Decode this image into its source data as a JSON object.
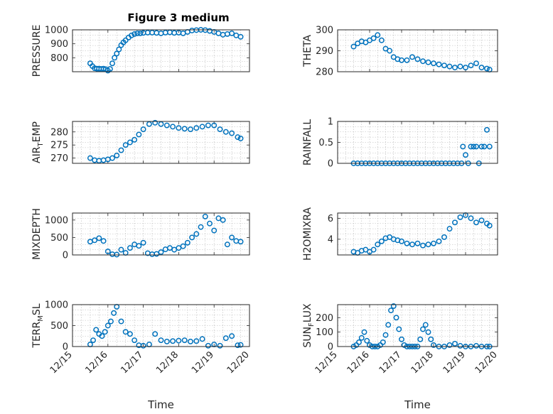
{
  "figure": {
    "title": "Figure 3 medium",
    "marker_color": "#0072BD",
    "axis_color": "#262626"
  },
  "chart_data": [
    {
      "type": "scatter",
      "id": "pressure",
      "ylabel": "PRESSURE",
      "xlabel": "",
      "xlim": [
        "2023-12-15",
        "2023-12-20"
      ],
      "ylim": [
        700,
        1000
      ],
      "yticks": [
        800,
        900,
        1000
      ],
      "grid": true,
      "x": [
        "12/15 12:00",
        "12/15 13:30",
        "12/15 15:00",
        "12/15 16:30",
        "12/15 18:00",
        "12/15 19:30",
        "12/15 21:00",
        "12/15 22:30",
        "12/16 00:00",
        "12/16 01:30",
        "12/16 03:00",
        "12/16 04:30",
        "12/16 06:00",
        "12/16 07:30",
        "12/16 09:00",
        "12/16 10:30",
        "12/16 12:00",
        "12/16 14:00",
        "12/16 16:00",
        "12/16 18:00",
        "12/16 20:00",
        "12/16 22:00",
        "12/17 00:00",
        "12/17 03:00",
        "12/17 06:00",
        "12/17 09:00",
        "12/17 12:00",
        "12/17 15:00",
        "12/17 18:00",
        "12/17 21:00",
        "12/18 00:00",
        "12/18 03:00",
        "12/18 06:00",
        "12/18 09:00",
        "12/18 12:00",
        "12/18 15:00",
        "12/18 18:00",
        "12/18 21:00",
        "12/19 00:00",
        "12/19 03:00",
        "12/19 06:00",
        "12/19 09:00",
        "12/19 12:00",
        "12/19 15:00",
        "12/19 18:00"
      ],
      "y": [
        760,
        740,
        725,
        722,
        722,
        720,
        722,
        718,
        708,
        720,
        760,
        800,
        830,
        860,
        890,
        910,
        925,
        945,
        960,
        970,
        975,
        975,
        978,
        980,
        980,
        978,
        975,
        980,
        982,
        978,
        980,
        975,
        985,
        995,
        998,
        1000,
        998,
        992,
        985,
        975,
        965,
        970,
        975,
        960,
        950
      ]
    },
    {
      "type": "scatter",
      "id": "theta",
      "ylabel": "THETA",
      "xlabel": "",
      "xlim": [
        "2023-12-15",
        "2023-12-20"
      ],
      "ylim": [
        280,
        300
      ],
      "yticks": [
        280,
        290,
        300
      ],
      "grid": true,
      "x": [
        "12/15 12:00",
        "12/15 15:00",
        "12/15 18:00",
        "12/15 21:00",
        "12/16 00:00",
        "12/16 03:00",
        "12/16 06:00",
        "12/16 09:00",
        "12/16 12:00",
        "12/16 15:00",
        "12/16 18:00",
        "12/16 21:00",
        "12/17 00:00",
        "12/17 04:00",
        "12/17 08:00",
        "12/17 12:00",
        "12/17 16:00",
        "12/17 20:00",
        "12/18 00:00",
        "12/18 04:00",
        "12/18 08:00",
        "12/18 12:00",
        "12/18 16:00",
        "12/18 20:00",
        "12/19 00:00",
        "12/19 04:00",
        "12/19 08:00",
        "12/19 12:00",
        "12/19 16:00",
        "12/19 18:00"
      ],
      "y": [
        292,
        293.5,
        294.5,
        294,
        295,
        296,
        297.5,
        295,
        291,
        290,
        287,
        286,
        285.5,
        285.5,
        287,
        286,
        285,
        284.5,
        284,
        283.5,
        283,
        282.5,
        282,
        282.5,
        282,
        283,
        284,
        282,
        281.5,
        281
      ]
    },
    {
      "type": "scatter",
      "id": "air_temp",
      "ylabel": "AIR",
      "ylabel_sub": "T",
      "ylabel_tail": "EMP",
      "xlabel": "",
      "xlim": [
        "2023-12-15",
        "2023-12-20"
      ],
      "ylim": [
        268,
        284
      ],
      "yticks": [
        270,
        275,
        280
      ],
      "grid": true,
      "x": [
        "12/15 12:00",
        "12/15 15:00",
        "12/15 18:00",
        "12/15 21:00",
        "12/16 00:00",
        "12/16 03:00",
        "12/16 06:00",
        "12/16 09:00",
        "12/16 12:00",
        "12/16 15:00",
        "12/16 18:00",
        "12/16 21:00",
        "12/17 00:00",
        "12/17 04:00",
        "12/17 08:00",
        "12/17 12:00",
        "12/17 16:00",
        "12/17 20:00",
        "12/18 00:00",
        "12/18 04:00",
        "12/18 08:00",
        "12/18 12:00",
        "12/18 16:00",
        "12/18 20:00",
        "12/19 00:00",
        "12/19 04:00",
        "12/19 08:00",
        "12/19 12:00",
        "12/19 16:00",
        "12/19 18:00"
      ],
      "y": [
        270,
        269.2,
        269,
        269.2,
        269.5,
        270,
        271,
        273,
        275,
        276,
        277,
        279,
        281,
        283,
        283.5,
        283,
        282.5,
        282,
        281.5,
        281.2,
        281,
        281.5,
        282,
        282.5,
        282.5,
        281,
        280,
        279.5,
        278,
        277.5
      ]
    },
    {
      "type": "scatter",
      "id": "rainfall",
      "ylabel": "RAINFALL",
      "xlabel": "",
      "xlim": [
        "2023-12-15",
        "2023-12-20"
      ],
      "ylim": [
        0,
        1
      ],
      "yticks": [
        0,
        0.5,
        1
      ],
      "grid": true,
      "x": [
        "12/15 12:00",
        "12/15 15:00",
        "12/15 18:00",
        "12/15 21:00",
        "12/16 00:00",
        "12/16 03:00",
        "12/16 06:00",
        "12/16 09:00",
        "12/16 12:00",
        "12/16 15:00",
        "12/16 18:00",
        "12/16 21:00",
        "12/17 00:00",
        "12/17 03:00",
        "12/17 06:00",
        "12/17 09:00",
        "12/17 12:00",
        "12/17 15:00",
        "12/17 18:00",
        "12/17 21:00",
        "12/18 00:00",
        "12/18 03:00",
        "12/18 06:00",
        "12/18 09:00",
        "12/18 12:00",
        "12/18 15:00",
        "12/18 18:00",
        "12/18 21:00",
        "12/18 22:00",
        "12/19 00:00",
        "12/19 02:00",
        "12/19 04:00",
        "12/19 06:00",
        "12/19 08:00",
        "12/19 10:00",
        "12/19 12:00",
        "12/19 14:00",
        "12/19 16:00",
        "12/19 18:00"
      ],
      "y": [
        0,
        0,
        0,
        0,
        0,
        0,
        0,
        0,
        0,
        0,
        0,
        0,
        0,
        0,
        0,
        0,
        0,
        0,
        0,
        0,
        0,
        0,
        0,
        0,
        0,
        0,
        0,
        0,
        0.4,
        0.2,
        0,
        0.4,
        0.4,
        0.4,
        0,
        0.4,
        0.4,
        0.8,
        0.4
      ]
    },
    {
      "type": "scatter",
      "id": "mixdepth",
      "ylabel": "MIXDEPTH",
      "xlabel": "",
      "xlim": [
        "2023-12-15",
        "2023-12-20"
      ],
      "ylim": [
        0,
        1200
      ],
      "yticks": [
        0,
        500,
        1000
      ],
      "grid": true,
      "x": [
        "12/15 12:00",
        "12/15 15:00",
        "12/15 18:00",
        "12/15 21:00",
        "12/16 00:00",
        "12/16 03:00",
        "12/16 06:00",
        "12/16 09:00",
        "12/16 12:00",
        "12/16 15:00",
        "12/16 18:00",
        "12/16 21:00",
        "12/17 00:00",
        "12/17 03:00",
        "12/17 06:00",
        "12/17 09:00",
        "12/17 12:00",
        "12/17 15:00",
        "12/17 18:00",
        "12/17 21:00",
        "12/18 00:00",
        "12/18 03:00",
        "12/18 06:00",
        "12/18 09:00",
        "12/18 12:00",
        "12/18 15:00",
        "12/18 18:00",
        "12/18 21:00",
        "12/19 00:00",
        "12/19 03:00",
        "12/19 06:00",
        "12/19 09:00",
        "12/19 12:00",
        "12/19 15:00",
        "12/19 18:00"
      ],
      "y": [
        380,
        420,
        480,
        400,
        100,
        20,
        10,
        150,
        60,
        200,
        300,
        260,
        350,
        50,
        20,
        30,
        80,
        160,
        200,
        150,
        200,
        250,
        350,
        500,
        600,
        800,
        1100,
        900,
        700,
        1050,
        1000,
        300,
        500,
        400,
        380
      ]
    },
    {
      "type": "scatter",
      "id": "h2omixra",
      "ylabel": "H2OMIXRA",
      "xlabel": "",
      "xlim": [
        "2023-12-15",
        "2023-12-20"
      ],
      "ylim": [
        2.5,
        6.5
      ],
      "yticks": [
        4,
        6
      ],
      "grid": true,
      "x": [
        "12/15 12:00",
        "12/15 15:00",
        "12/15 18:00",
        "12/15 21:00",
        "12/16 00:00",
        "12/16 03:00",
        "12/16 06:00",
        "12/16 09:00",
        "12/16 12:00",
        "12/16 15:00",
        "12/16 18:00",
        "12/16 21:00",
        "12/17 00:00",
        "12/17 04:00",
        "12/17 08:00",
        "12/17 12:00",
        "12/17 16:00",
        "12/17 20:00",
        "12/18 00:00",
        "12/18 04:00",
        "12/18 08:00",
        "12/18 12:00",
        "12/18 16:00",
        "12/18 20:00",
        "12/19 00:00",
        "12/19 04:00",
        "12/19 08:00",
        "12/19 12:00",
        "12/19 16:00",
        "12/19 18:00"
      ],
      "y": [
        2.8,
        2.7,
        2.9,
        3.0,
        2.8,
        3.0,
        3.5,
        3.8,
        4.1,
        4.2,
        4.0,
        3.9,
        3.8,
        3.6,
        3.5,
        3.6,
        3.4,
        3.5,
        3.6,
        3.8,
        4.2,
        5.0,
        5.6,
        6.1,
        6.3,
        6.0,
        5.6,
        5.8,
        5.5,
        5.3
      ]
    },
    {
      "type": "scatter",
      "id": "terr_msl",
      "ylabel": "TERR",
      "ylabel_sub": "M",
      "ylabel_tail": "SL",
      "xlabel": "Time",
      "xlim": [
        "2023-12-15",
        "2023-12-20"
      ],
      "ylim": [
        0,
        1000
      ],
      "yticks": [
        0,
        500,
        1000
      ],
      "grid": true,
      "xticklabels": [
        "12/15",
        "12/16",
        "12/17",
        "12/18",
        "12/19",
        "12/20"
      ],
      "x": [
        "12/15 12:00",
        "12/15 14:00",
        "12/15 16:00",
        "12/15 18:00",
        "12/15 20:00",
        "12/15 22:00",
        "12/16 00:00",
        "12/16 02:00",
        "12/16 04:00",
        "12/16 06:00",
        "12/16 09:00",
        "12/16 12:00",
        "12/16 15:00",
        "12/16 18:00",
        "12/16 21:00",
        "12/17 00:00",
        "12/17 04:00",
        "12/17 08:00",
        "12/17 12:00",
        "12/17 16:00",
        "12/17 20:00",
        "12/18 00:00",
        "12/18 04:00",
        "12/18 08:00",
        "12/18 12:00",
        "12/18 16:00",
        "12/18 20:00",
        "12/19 00:00",
        "12/19 04:00",
        "12/19 08:00",
        "12/19 12:00",
        "12/19 16:00",
        "12/19 18:00"
      ],
      "y": [
        50,
        150,
        400,
        300,
        250,
        350,
        500,
        600,
        800,
        950,
        600,
        350,
        300,
        150,
        30,
        20,
        50,
        300,
        150,
        120,
        130,
        140,
        150,
        120,
        130,
        180,
        20,
        50,
        20,
        200,
        250,
        30,
        40
      ]
    },
    {
      "type": "scatter",
      "id": "sun_flux",
      "ylabel": "SUN",
      "ylabel_sub": "F",
      "ylabel_tail": "LUX",
      "xlabel": "Time",
      "xlim": [
        "2023-12-15",
        "2023-12-20"
      ],
      "ylim": [
        0,
        290
      ],
      "yticks": [
        0,
        100,
        200
      ],
      "grid": true,
      "xticklabels": [
        "12/15",
        "12/16",
        "12/17",
        "12/18",
        "12/19",
        "12/20"
      ],
      "x": [
        "12/15 12:00",
        "12/15 14:00",
        "12/15 16:00",
        "12/15 18:00",
        "12/15 20:00",
        "12/15 22:00",
        "12/16 00:00",
        "12/16 02:00",
        "12/16 04:00",
        "12/16 06:00",
        "12/16 08:00",
        "12/16 10:00",
        "12/16 12:00",
        "12/16 14:00",
        "12/16 16:00",
        "12/16 18:00",
        "12/16 20:00",
        "12/16 22:00",
        "12/17 00:00",
        "12/17 02:00",
        "12/17 04:00",
        "12/17 06:00",
        "12/17 08:00",
        "12/17 10:00",
        "12/17 12:00",
        "12/17 14:00",
        "12/17 16:00",
        "12/17 18:00",
        "12/17 20:00",
        "12/17 22:00",
        "12/18 00:00",
        "12/18 04:00",
        "12/18 08:00",
        "12/18 12:00",
        "12/18 16:00",
        "12/18 20:00",
        "12/19 00:00",
        "12/19 04:00",
        "12/19 08:00",
        "12/19 12:00",
        "12/19 16:00",
        "12/19 18:00"
      ],
      "y": [
        0,
        10,
        30,
        60,
        100,
        40,
        10,
        0,
        0,
        0,
        10,
        30,
        80,
        150,
        250,
        280,
        200,
        120,
        50,
        10,
        0,
        0,
        0,
        0,
        0,
        50,
        120,
        150,
        100,
        50,
        10,
        0,
        0,
        10,
        20,
        5,
        0,
        0,
        5,
        0,
        0,
        0
      ]
    }
  ]
}
